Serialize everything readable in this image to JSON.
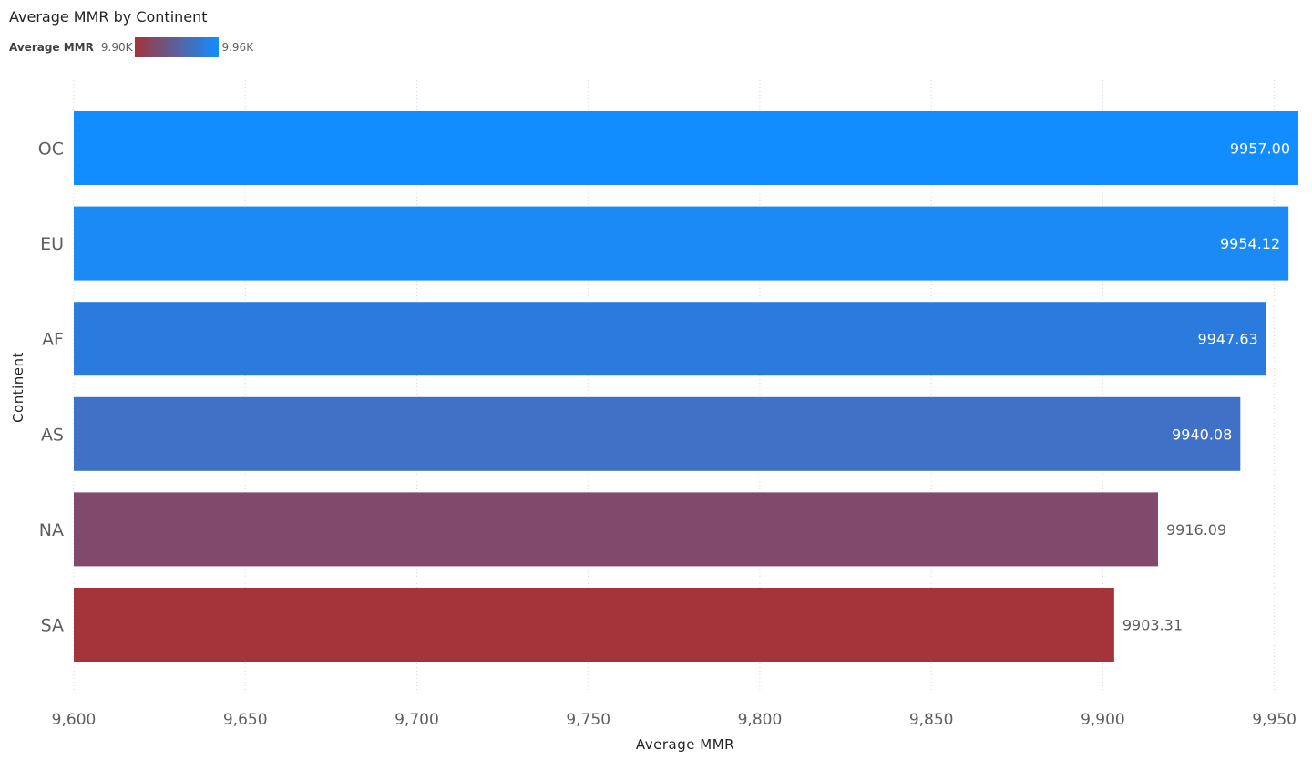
{
  "chart_data": {
    "type": "bar",
    "orientation": "horizontal",
    "title": "Average MMR by Continent",
    "xlabel": "Average MMR",
    "ylabel": "Continent",
    "categories": [
      "OC",
      "EU",
      "AF",
      "AS",
      "NA",
      "SA"
    ],
    "values": [
      9957.0,
      9954.12,
      9947.63,
      9940.08,
      9916.09,
      9903.31
    ],
    "data_labels": [
      "9957.00",
      "9954.12",
      "9947.63",
      "9940.08",
      "9916.09",
      "9903.31"
    ],
    "xlim": [
      9600,
      9957
    ],
    "xticks": [
      "9,600",
      "9,650",
      "9,700",
      "9,750",
      "9,800",
      "9,850",
      "9,900",
      "9,950"
    ],
    "xtick_values": [
      9600,
      9650,
      9700,
      9750,
      9800,
      9850,
      9900,
      9950
    ],
    "grid": true,
    "legend": {
      "title": "Average MMR",
      "min_label": "9.90K",
      "max_label": "9.96K",
      "min_value": 9900,
      "max_value": 9960,
      "placement": "top-left"
    },
    "colors": {
      "gradient_low": "#a4343a",
      "gradient_high": "#118dff",
      "bar_colors": [
        "#118dff",
        "#1b8af5",
        "#2b7bde",
        "#4071c6",
        "#824a6a",
        "#a4343a"
      ]
    }
  }
}
